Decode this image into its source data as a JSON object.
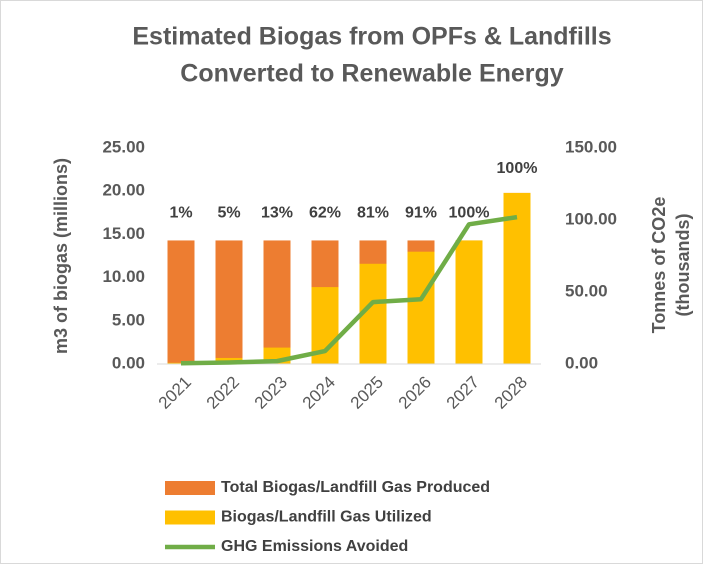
{
  "chart_data": {
    "type": "bar",
    "title": [
      "Estimated Biogas from OPFs & Landfills",
      "Converted to Renewable Energy"
    ],
    "ylabel": "m3 of biogas (millions)",
    "y2label": [
      "Tonnes of CO2e",
      "(thousands)"
    ],
    "categories": [
      "2021",
      "2022",
      "2023",
      "2024",
      "2025",
      "2026",
      "2027",
      "2028"
    ],
    "series": [
      {
        "name": "Total Biogas/Landfill Gas Produced",
        "type": "bar",
        "color": "#ed7d31",
        "values": [
          14.3,
          14.3,
          14.3,
          14.3,
          14.3,
          14.3,
          14.3,
          19.8
        ]
      },
      {
        "name": "Biogas/Landfill Gas Utilized",
        "type": "bar",
        "color": "#ffc000",
        "values": [
          0.14,
          0.7,
          1.9,
          8.9,
          11.6,
          13.0,
          14.3,
          19.8
        ]
      },
      {
        "name": "GHG Emissions Avoided",
        "type": "line",
        "axis": "y2",
        "color": "#70ad47",
        "values": [
          0.5,
          1,
          2,
          9,
          43,
          45,
          97,
          102
        ]
      }
    ],
    "bar_labels": [
      "1%",
      "5%",
      "13%",
      "62%",
      "81%",
      "91%",
      "100%",
      "100%"
    ],
    "ylim": [
      0,
      25
    ],
    "yticks": [
      {
        "value": 0,
        "label": "0.00"
      },
      {
        "value": 5,
        "label": "5.00"
      },
      {
        "value": 10,
        "label": "10.00"
      },
      {
        "value": 15,
        "label": "15.00"
      },
      {
        "value": 20,
        "label": "20.00"
      },
      {
        "value": 25,
        "label": "25.00"
      }
    ],
    "y2lim": [
      0,
      150
    ],
    "y2ticks": [
      {
        "value": 0,
        "label": "0.00"
      },
      {
        "value": 50,
        "label": "50.00"
      },
      {
        "value": 100,
        "label": "100.00"
      },
      {
        "value": 150,
        "label": "150.00"
      }
    ],
    "grid": false,
    "legend": "bottom"
  }
}
